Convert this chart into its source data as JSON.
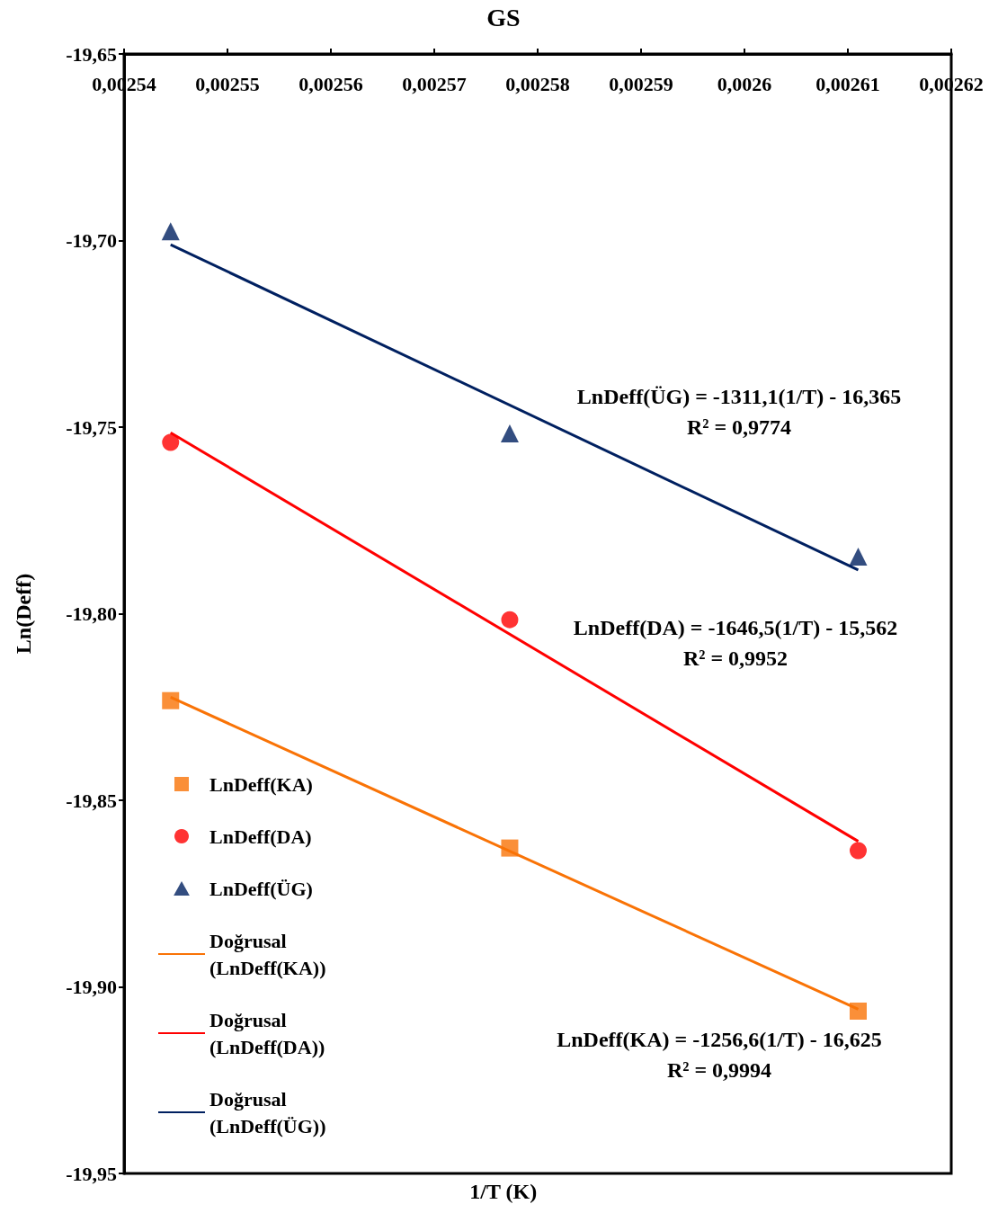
{
  "chart_data": {
    "type": "scatter",
    "title": "GS",
    "xlabel": "1/T (K)",
    "ylabel": "Ln(Deff)",
    "xlim": [
      0.00254,
      0.00262
    ],
    "xticks": [
      {
        "value": 0.00254,
        "label": "0,00254"
      },
      {
        "value": 0.00255,
        "label": "0,00255"
      },
      {
        "value": 0.00256,
        "label": "0,00256"
      },
      {
        "value": 0.00257,
        "label": "0,00257"
      },
      {
        "value": 0.00258,
        "label": "0,00258"
      },
      {
        "value": 0.00259,
        "label": "0,00259"
      },
      {
        "value": 0.0026,
        "label": "0,0026"
      },
      {
        "value": 0.00261,
        "label": "0,00261"
      },
      {
        "value": 0.00262,
        "label": "0,00262"
      }
    ],
    "ylim": [
      -19.95,
      -19.65
    ],
    "yticks": [
      {
        "value": -19.95,
        "label": "-19,95"
      },
      {
        "value": -19.9,
        "label": "-19,90"
      },
      {
        "value": -19.85,
        "label": "-19,85"
      },
      {
        "value": -19.8,
        "label": "-19,80"
      },
      {
        "value": -19.75,
        "label": "-19,75"
      },
      {
        "value": -19.7,
        "label": "-19,70"
      },
      {
        "value": -19.65,
        "label": "-19,65"
      }
    ],
    "grid": false,
    "legend": "bottom left",
    "series": [
      {
        "name": "LnDeff(KA)",
        "marker": "square",
        "color": "#f97306",
        "x": [
          0.0025445,
          0.0025773,
          0.002611
        ],
        "values": [
          -19.8233,
          -19.8628,
          -19.9065
        ]
      },
      {
        "name": "LnDeff(DA)",
        "marker": "circle",
        "color": "#ff0000",
        "x": [
          0.0025445,
          0.0025773,
          0.002611
        ],
        "values": [
          -19.7541,
          -19.8016,
          -19.8635
        ]
      },
      {
        "name": "LnDeff(ÜG)",
        "marker": "triangle",
        "color": "#002060",
        "x": [
          0.0025445,
          0.0025773,
          0.002611
        ],
        "values": [
          -19.6975,
          -19.7517,
          -19.7847
        ]
      },
      {
        "name": "Doğrusal (LnDeff(KA))",
        "type": "line",
        "marker": "none",
        "color": "#f97306",
        "x": [
          0.0025445,
          0.002611
        ],
        "values": [
          -19.8224,
          -19.906
        ]
      },
      {
        "name": "Doğrusal (LnDeff(DA))",
        "type": "line",
        "marker": "none",
        "color": "#ff0000",
        "x": [
          0.0025445,
          0.002611
        ],
        "values": [
          -19.7515,
          -19.861
        ]
      },
      {
        "name": "Doğrusal (LnDeff(ÜG))",
        "type": "line",
        "marker": "none",
        "color": "#002060",
        "x": [
          0.0025445,
          0.002611
        ],
        "values": [
          -19.7011,
          -19.7883
        ]
      }
    ],
    "annotations": [
      "LnDeff(ÜG) = -1311,1(1/T) - 16,365\nR² = 0,9774",
      "LnDeff(DA) = -1646,5(1/T) - 15,562\nR² = 0,9952",
      "LnDeff(KA) = -1256,6(1/T) - 16,625\nR² = 0,9994"
    ]
  }
}
